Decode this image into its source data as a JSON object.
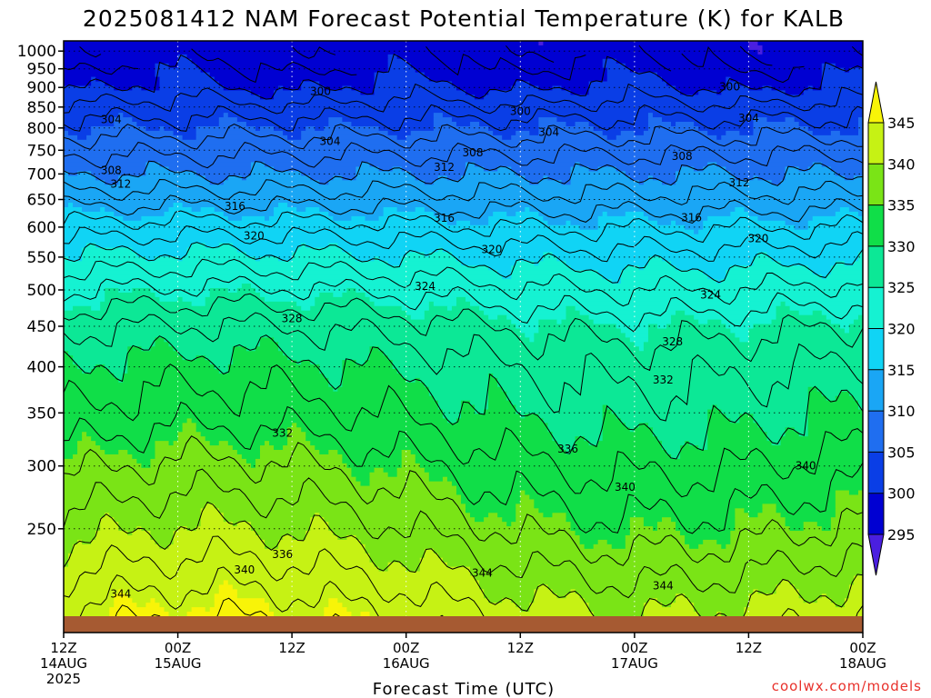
{
  "chart_data": {
    "type": "filled-contour",
    "title": "2025081412 NAM Forecast Potential Temperature (K) for KALB",
    "xlabel": "Forecast Time (UTC)",
    "credit": "coolwx.com/models",
    "x_ticks": [
      {
        "hour": 0,
        "lines": [
          "12Z",
          "14AUG",
          "2025"
        ]
      },
      {
        "hour": 12,
        "lines": [
          "00Z",
          "15AUG"
        ]
      },
      {
        "hour": 24,
        "lines": [
          "12Z"
        ]
      },
      {
        "hour": 36,
        "lines": [
          "00Z",
          "16AUG"
        ]
      },
      {
        "hour": 48,
        "lines": [
          "12Z"
        ]
      },
      {
        "hour": 60,
        "lines": [
          "00Z",
          "17AUG"
        ]
      },
      {
        "hour": 72,
        "lines": [
          "12Z"
        ]
      },
      {
        "hour": 84,
        "lines": [
          "00Z",
          "18AUG"
        ]
      }
    ],
    "x_range_hours": [
      0,
      84
    ],
    "y_axis": {
      "scale": "pressure (log)",
      "range_hpa": [
        1030,
        185
      ],
      "ticks": [
        250,
        300,
        350,
        400,
        450,
        500,
        550,
        600,
        650,
        700,
        750,
        800,
        850,
        900,
        950,
        1000
      ]
    },
    "colorbar": {
      "ticks": [
        295,
        300,
        305,
        310,
        315,
        320,
        325,
        330,
        335,
        340,
        345
      ],
      "bins": [
        {
          "min": 290,
          "max": 295,
          "color": "#4a1fe0"
        },
        {
          "min": 295,
          "max": 300,
          "color": "#0000d2"
        },
        {
          "min": 300,
          "max": 305,
          "color": "#0a3ee6"
        },
        {
          "min": 305,
          "max": 310,
          "color": "#1f6ef0"
        },
        {
          "min": 310,
          "max": 315,
          "color": "#1aa6f5"
        },
        {
          "min": 315,
          "max": 320,
          "color": "#10d4f5"
        },
        {
          "min": 320,
          "max": 325,
          "color": "#15f2d2"
        },
        {
          "min": 325,
          "max": 330,
          "color": "#0ce896"
        },
        {
          "min": 330,
          "max": 335,
          "color": "#10de48"
        },
        {
          "min": 335,
          "max": 340,
          "color": "#7ae416"
        },
        {
          "min": 340,
          "max": 345,
          "color": "#c6f214"
        },
        {
          "min": 345,
          "max": 350,
          "color": "#f8f408"
        }
      ]
    },
    "contour_interval": 2,
    "ground_color": "#a65a32",
    "theta_profile_mean": [
      {
        "p": 1000,
        "theta": 299
      },
      {
        "p": 950,
        "theta": 300
      },
      {
        "p": 900,
        "theta": 301
      },
      {
        "p": 850,
        "theta": 303
      },
      {
        "p": 800,
        "theta": 305
      },
      {
        "p": 750,
        "theta": 307.5
      },
      {
        "p": 700,
        "theta": 310
      },
      {
        "p": 650,
        "theta": 313
      },
      {
        "p": 600,
        "theta": 316.5
      },
      {
        "p": 550,
        "theta": 320
      },
      {
        "p": 500,
        "theta": 323.5
      },
      {
        "p": 450,
        "theta": 327
      },
      {
        "p": 400,
        "theta": 329.5
      },
      {
        "p": 350,
        "theta": 331.5
      },
      {
        "p": 300,
        "theta": 334.5
      },
      {
        "p": 250,
        "theta": 338
      },
      {
        "p": 200,
        "theta": 343
      }
    ],
    "contour_labels": [
      {
        "text": "344",
        "hour": 6,
        "p": 207
      },
      {
        "text": "340",
        "hour": 19,
        "p": 222
      },
      {
        "text": "336",
        "hour": 23,
        "p": 232
      },
      {
        "text": "344",
        "hour": 44,
        "p": 220
      },
      {
        "text": "344",
        "hour": 63,
        "p": 212
      },
      {
        "text": "340",
        "hour": 59,
        "p": 282
      },
      {
        "text": "336",
        "hour": 53,
        "p": 315
      },
      {
        "text": "340",
        "hour": 78,
        "p": 300
      },
      {
        "text": "332",
        "hour": 23,
        "p": 330
      },
      {
        "text": "332",
        "hour": 63,
        "p": 385
      },
      {
        "text": "328",
        "hour": 24,
        "p": 460
      },
      {
        "text": "328",
        "hour": 64,
        "p": 430
      },
      {
        "text": "324",
        "hour": 38,
        "p": 505
      },
      {
        "text": "324",
        "hour": 68,
        "p": 493
      },
      {
        "text": "320",
        "hour": 20,
        "p": 585
      },
      {
        "text": "320",
        "hour": 45,
        "p": 562
      },
      {
        "text": "320",
        "hour": 73,
        "p": 580
      },
      {
        "text": "316",
        "hour": 18,
        "p": 637
      },
      {
        "text": "316",
        "hour": 40,
        "p": 616
      },
      {
        "text": "316",
        "hour": 66,
        "p": 617
      },
      {
        "text": "312",
        "hour": 6,
        "p": 680
      },
      {
        "text": "312",
        "hour": 40,
        "p": 714
      },
      {
        "text": "312",
        "hour": 71,
        "p": 683
      },
      {
        "text": "308",
        "hour": 5,
        "p": 707
      },
      {
        "text": "308",
        "hour": 43,
        "p": 745
      },
      {
        "text": "308",
        "hour": 65,
        "p": 737
      },
      {
        "text": "304",
        "hour": 28,
        "p": 770
      },
      {
        "text": "304",
        "hour": 5,
        "p": 820
      },
      {
        "text": "304",
        "hour": 51,
        "p": 790
      },
      {
        "text": "304",
        "hour": 72,
        "p": 823
      },
      {
        "text": "300",
        "hour": 27,
        "p": 890
      },
      {
        "text": "300",
        "hour": 48,
        "p": 840
      },
      {
        "text": "300",
        "hour": 70,
        "p": 902
      }
    ]
  }
}
